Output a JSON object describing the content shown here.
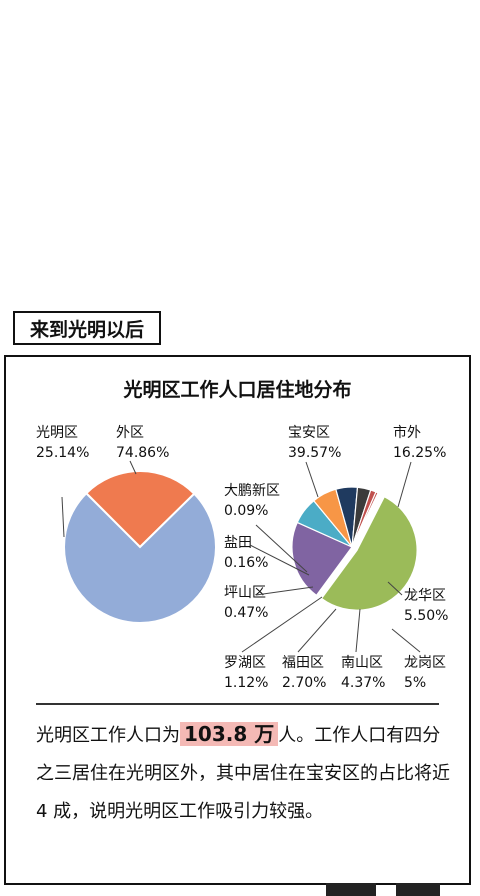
{
  "header": {
    "tag": "来到光明以后"
  },
  "chart_data": [
    {
      "type": "pie",
      "title": "光明区工作人口居住地分布",
      "slices": [
        {
          "label": "光明区",
          "value": 25.14,
          "value_label": "25.14%",
          "color": "#ef7a4f"
        },
        {
          "label": "外区",
          "value": 74.86,
          "value_label": "74.86%",
          "color": "#93acd8"
        }
      ]
    },
    {
      "type": "pie",
      "slices": [
        {
          "label": "宝安区",
          "value": 39.57,
          "value_label": "39.57%",
          "color": "#9bbb59"
        },
        {
          "label": "市外",
          "value": 16.25,
          "value_label": "16.25%",
          "color": "#8064a2"
        },
        {
          "label": "龙华区",
          "value": 5.5,
          "value_label": "5.50%",
          "color": "#4bacc6"
        },
        {
          "label": "龙岗区",
          "value": 5,
          "value_label": "5%",
          "color": "#f79646"
        },
        {
          "label": "南山区",
          "value": 4.37,
          "value_label": "4.37%",
          "color": "#1f3a5f"
        },
        {
          "label": "福田区",
          "value": 2.7,
          "value_label": "2.70%",
          "color": "#3b3b3b"
        },
        {
          "label": "罗湖区",
          "value": 1.12,
          "value_label": "1.12%",
          "color": "#c0504d"
        },
        {
          "label": "坪山区",
          "value": 0.47,
          "value_label": "0.47%",
          "color": "#c0504d"
        },
        {
          "label": "盐田",
          "value": 0.16,
          "value_label": "0.16%",
          "color": "#e0e0e0"
        },
        {
          "label": "大鹏新区",
          "value": 0.09,
          "value_label": "0.09%",
          "color": "#d99694"
        }
      ]
    }
  ],
  "description": {
    "part1": "光明区工作人口为",
    "highlight": "103.8 万",
    "part2": "人。工作人口有四分之三居住在光明区外，其中居住在宝安区的占比将近 4 成，说明光明区工作吸引力较强。"
  }
}
